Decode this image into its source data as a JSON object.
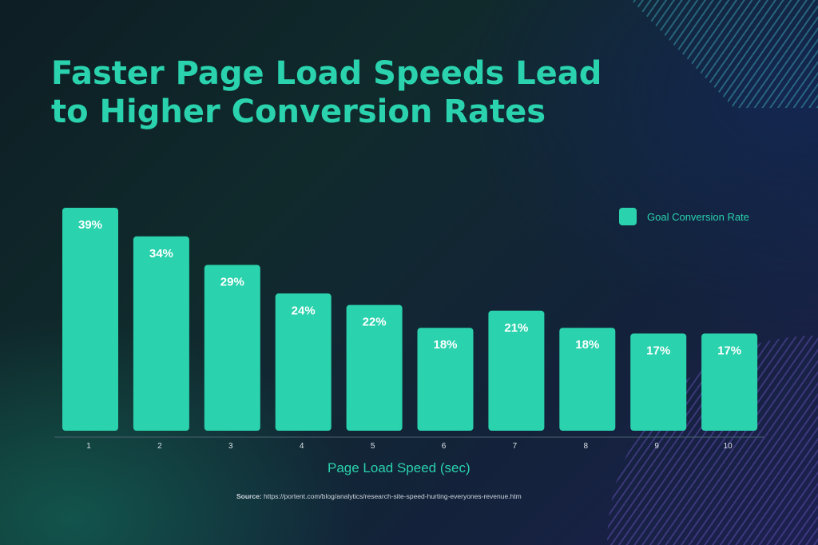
{
  "chart_data": {
    "type": "bar",
    "title": "Faster Page Load Speeds Lead to Higher Conversion Rates",
    "title_lines": [
      "Faster Page Load Speeds Lead",
      "to Higher Conversion Rates"
    ],
    "categories": [
      "1",
      "2",
      "3",
      "4",
      "5",
      "6",
      "7",
      "8",
      "9",
      "10"
    ],
    "series": [
      {
        "name": "Goal Conversion Rate",
        "values": [
          39,
          34,
          29,
          24,
          22,
          18,
          21,
          18,
          17,
          17
        ]
      }
    ],
    "data_labels": [
      "39%",
      "34%",
      "29%",
      "24%",
      "22%",
      "18%",
      "21%",
      "18%",
      "17%",
      "17%"
    ],
    "xlabel": "Page Load Speed (sec)",
    "ylabel": "",
    "ylim": [
      0,
      40
    ],
    "legend": {
      "position": "top-right",
      "label": "Goal Conversion Rate"
    },
    "grid": false,
    "colors": {
      "bar": "#2ad2ad",
      "label": "#ffffff",
      "axis": "#4a6270",
      "tick": "#d9e0e6"
    }
  },
  "source": {
    "prefix": "Source:",
    "url": "https://portent.com/blog/analytics/research-site-speed-hurting-everyones-revenue.htm"
  }
}
